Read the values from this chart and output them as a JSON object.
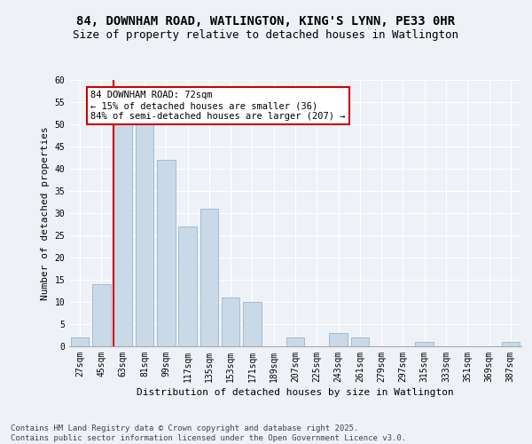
{
  "title_line1": "84, DOWNHAM ROAD, WATLINGTON, KING'S LYNN, PE33 0HR",
  "title_line2": "Size of property relative to detached houses in Watlington",
  "xlabel": "Distribution of detached houses by size in Watlington",
  "ylabel": "Number of detached properties",
  "categories": [
    "27sqm",
    "45sqm",
    "63sqm",
    "81sqm",
    "99sqm",
    "117sqm",
    "135sqm",
    "153sqm",
    "171sqm",
    "189sqm",
    "207sqm",
    "225sqm",
    "243sqm",
    "261sqm",
    "279sqm",
    "297sqm",
    "315sqm",
    "333sqm",
    "351sqm",
    "369sqm",
    "387sqm"
  ],
  "values": [
    2,
    14,
    50,
    50,
    42,
    27,
    31,
    11,
    10,
    0,
    2,
    0,
    3,
    2,
    0,
    0,
    1,
    0,
    0,
    0,
    1
  ],
  "bar_color": "#c9d9e8",
  "bar_edge_color": "#9ab5cc",
  "property_label": "84 DOWNHAM ROAD: 72sqm",
  "annotation_line1": "← 15% of detached houses are smaller (36)",
  "annotation_line2": "84% of semi-detached houses are larger (207) →",
  "vline_color": "#cc0000",
  "annotation_box_color": "#ffffff",
  "annotation_box_edge": "#cc0000",
  "footer": "Contains HM Land Registry data © Crown copyright and database right 2025.\nContains public sector information licensed under the Open Government Licence v3.0.",
  "ylim": [
    0,
    60
  ],
  "yticks": [
    0,
    5,
    10,
    15,
    20,
    25,
    30,
    35,
    40,
    45,
    50,
    55,
    60
  ],
  "background_color": "#eef2f7",
  "grid_color": "#ffffff",
  "title_fontsize": 10,
  "subtitle_fontsize": 9,
  "axis_label_fontsize": 8,
  "tick_fontsize": 7,
  "footer_fontsize": 6.5,
  "annot_fontsize": 7.5
}
